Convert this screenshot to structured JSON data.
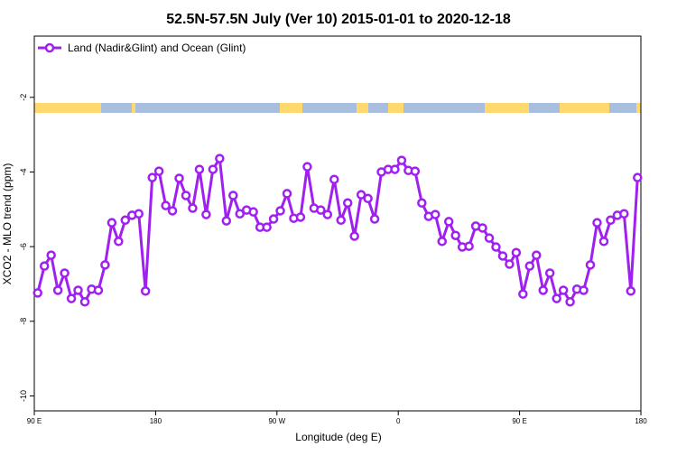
{
  "chart_data": {
    "type": "line",
    "title": "52.5N-57.5N July (Ver 10)   2015-01-01 to 2020-12-18",
    "x_label": "Longitude (deg E)",
    "y_label": "XCO2 - MLO trend (ppm)",
    "x": [
      92.5,
      97.5,
      102.5,
      107.5,
      112.5,
      117.5,
      122.5,
      127.5,
      132.5,
      137.5,
      142.5,
      147.5,
      152.5,
      157.5,
      162.5,
      167.5,
      172.5,
      177.5,
      182.5,
      187.5,
      192.5,
      197.5,
      202.5,
      207.5,
      212.5,
      217.5,
      222.5,
      227.5,
      232.5,
      237.5,
      242.5,
      247.5,
      252.5,
      257.5,
      262.5,
      267.5,
      272.5,
      277.5,
      282.5,
      287.5,
      292.5,
      297.5,
      302.5,
      307.5,
      312.5,
      317.5,
      322.5,
      327.5,
      332.5,
      337.5,
      342.5,
      347.5,
      352.5,
      357.5,
      362.5,
      367.5,
      372.5,
      377.5,
      382.5,
      387.5,
      392.5,
      397.5,
      402.5,
      407.5,
      412.5,
      417.5,
      422.5,
      427.5,
      432.5,
      437.5,
      442.5,
      447.5,
      452.5,
      457.5,
      462.5,
      467.5,
      472.5,
      477.5,
      482.5,
      487.5,
      492.5,
      497.5,
      502.5,
      507.5,
      512.5,
      517.5,
      522.5,
      527.5,
      532.5,
      537.5
    ],
    "series": [
      {
        "name": "Land (Nadir&Glint) and Ocean (Glint)",
        "color": "#a020f0",
        "values": [
          -7.24,
          -6.52,
          -6.23,
          -7.17,
          -6.71,
          -7.39,
          -7.17,
          -7.48,
          -7.14,
          -7.17,
          -6.49,
          -5.36,
          -5.86,
          -5.29,
          -5.16,
          -5.12,
          -7.19,
          -4.15,
          -3.98,
          -4.9,
          -5.04,
          -4.17,
          -4.63,
          -4.97,
          -3.93,
          -5.14,
          -3.93,
          -3.64,
          -5.31,
          -4.63,
          -5.12,
          -5.02,
          -5.07,
          -5.48,
          -5.48,
          -5.26,
          -5.04,
          -4.58,
          -5.24,
          -5.21,
          -3.86,
          -4.97,
          -5.02,
          -5.14,
          -4.2,
          -5.29,
          -4.83,
          -5.72,
          -4.61,
          -4.71,
          -5.26,
          -4.0,
          -3.93,
          -3.93,
          -3.69,
          -3.96,
          -3.98,
          -4.83,
          -5.19,
          -5.14,
          -5.86,
          -5.33,
          -5.7,
          -6.01,
          -5.99,
          -5.45,
          -5.5,
          -5.77,
          -6.01,
          -6.25,
          -6.47,
          -6.16,
          -7.27,
          -6.52,
          -6.23,
          -7.17,
          -6.71,
          -7.39,
          -7.17,
          -7.48,
          -7.14,
          -7.17,
          -6.49,
          -5.36,
          -5.86,
          -5.29,
          -5.16,
          -5.12,
          -7.19,
          -4.15
        ]
      }
    ],
    "xlim": [
      90,
      540
    ],
    "xticks": [
      {
        "value": 90,
        "label": "90 E"
      },
      {
        "value": 180,
        "label": "180"
      },
      {
        "value": 270,
        "label": "90 W"
      },
      {
        "value": 360,
        "label": "0"
      },
      {
        "value": 450,
        "label": "90 E"
      },
      {
        "value": 540,
        "label": "180"
      }
    ],
    "ylim": [
      -10.4,
      -0.36
    ],
    "yticks": [
      -2,
      -4,
      -6,
      -8,
      -10
    ],
    "legend": "top-left"
  }
}
